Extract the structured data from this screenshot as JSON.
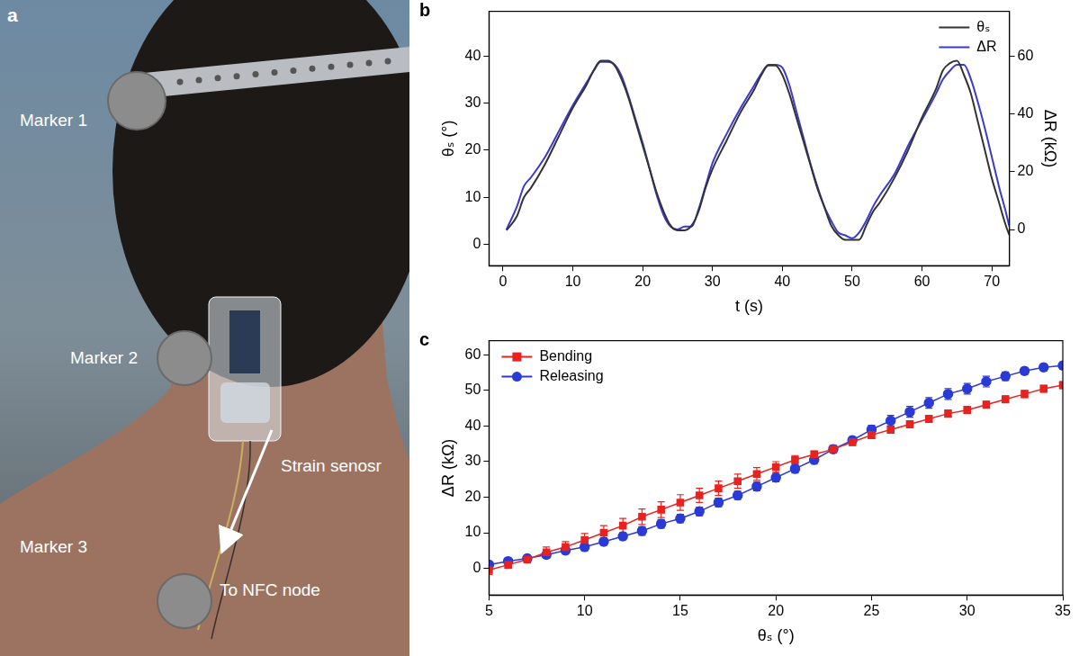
{
  "panel_a": {
    "panel_label": "a",
    "labels": [
      "Marker 1",
      "Marker 2",
      "Strain senosr",
      "Marker 3",
      "To NFC node"
    ]
  },
  "chart_data": [
    {
      "panel_label": "b",
      "type": "line",
      "x_label": "t (s)",
      "y_label": "θₛ (°)",
      "y2_label": "ΔR (kΩ)",
      "x": [
        0.5,
        2,
        3,
        4,
        6,
        8,
        10,
        12,
        13,
        14,
        15,
        16,
        17,
        18,
        19,
        20,
        21,
        22,
        23,
        24,
        25,
        26,
        27,
        28,
        29,
        30,
        32,
        34,
        36,
        37,
        38,
        39,
        40,
        41,
        42,
        43,
        44,
        45,
        46,
        47,
        48,
        49,
        50,
        51,
        52,
        53,
        54,
        56,
        58,
        60,
        62,
        63,
        64,
        65,
        66,
        67,
        68,
        69,
        70,
        71,
        72,
        72.5
      ],
      "xlim": [
        -2,
        72.5
      ],
      "xticks": [
        0,
        10,
        20,
        30,
        40,
        50,
        60,
        70
      ],
      "ylim": [
        -4.5,
        49.5
      ],
      "yticks": [
        0,
        10,
        20,
        30,
        40
      ],
      "y2lim": [
        -12.5,
        75.5
      ],
      "y2ticks": [
        0,
        20,
        40,
        60
      ],
      "grid": false,
      "legend": "upper right",
      "series": [
        {
          "name": "θₛ",
          "color": "#333333",
          "line_style": "solid",
          "values": [
            3,
            6,
            10,
            12,
            17,
            23,
            29,
            34,
            37,
            39,
            39,
            38,
            35,
            31,
            26,
            21,
            16,
            11,
            7,
            4,
            3,
            3,
            4,
            7,
            12,
            16,
            22,
            28,
            33,
            36,
            38,
            38,
            36,
            32,
            27,
            22,
            17,
            12,
            8,
            4,
            2,
            1,
            1,
            1,
            4,
            7,
            9,
            14,
            20,
            27,
            33,
            37,
            38.5,
            39,
            36,
            32,
            26,
            20,
            14,
            9,
            4,
            2
          ]
        },
        {
          "name": "ΔR",
          "color": "#3a3ad0",
          "line_style": "solid",
          "axis": "y2",
          "values": [
            0,
            8,
            15,
            18,
            25,
            34,
            43,
            51,
            55,
            58,
            58,
            57,
            53,
            46,
            38,
            30,
            21,
            12,
            5,
            1,
            0,
            1,
            1,
            7,
            15,
            23,
            33,
            42,
            50,
            54,
            57,
            57,
            56,
            50,
            41,
            32,
            23,
            15,
            8,
            3,
            -1,
            -2,
            -3,
            -1,
            3,
            8,
            12,
            19,
            29,
            38,
            47,
            52,
            55,
            57,
            57,
            52,
            44,
            35,
            25,
            15,
            6,
            1
          ]
        }
      ]
    },
    {
      "panel_label": "c",
      "type": "line",
      "x_label": "θₛ (°)",
      "y_label": "ΔR (kΩ)",
      "x": [
        5,
        6,
        7,
        8,
        9,
        10,
        11,
        12,
        13,
        14,
        15,
        16,
        17,
        18,
        19,
        20,
        21,
        22,
        23,
        24,
        25,
        26,
        27,
        28,
        29,
        30,
        31,
        32,
        33,
        34,
        35
      ],
      "xlim": [
        5,
        35
      ],
      "xticks": [
        5,
        10,
        15,
        20,
        25,
        30,
        35
      ],
      "ylim": [
        -7.5,
        64
      ],
      "yticks": [
        0,
        10,
        20,
        30,
        40,
        50,
        60
      ],
      "grid": false,
      "legend": "upper left",
      "series": [
        {
          "name": "Bending",
          "color": "#e8231f",
          "marker": "square",
          "line_style": "solid",
          "values": [
            -0.5,
            1,
            2.5,
            4.5,
            6,
            8,
            10,
            12,
            14.5,
            16.5,
            18.5,
            20.5,
            22.5,
            24.5,
            26.5,
            28.5,
            30.5,
            32,
            33.5,
            35.5,
            37.5,
            39,
            40.5,
            42,
            43.5,
            44.5,
            46,
            47.5,
            49,
            50.5,
            51.5
          ],
          "error": [
            1.2,
            1,
            1,
            1.5,
            1.5,
            1.8,
            2,
            2,
            2.2,
            2.2,
            2.2,
            2,
            2,
            2,
            1.8,
            1.5,
            1.2,
            1,
            1,
            1,
            1,
            1,
            1,
            1,
            1,
            1,
            1,
            1,
            1,
            1,
            1
          ]
        },
        {
          "name": "Releasing",
          "color": "#2a3ad6",
          "marker": "circle",
          "line_style": "solid",
          "values": [
            1,
            2,
            2.8,
            3.8,
            5,
            6,
            7.5,
            9,
            10.5,
            12.5,
            14,
            16,
            18.5,
            20.5,
            23,
            25.5,
            28,
            30.5,
            33.5,
            36,
            39,
            41.5,
            44,
            46.5,
            49,
            50.5,
            52.5,
            54,
            55.5,
            56.5,
            57
          ],
          "error": [
            0.8,
            0.8,
            0.8,
            1,
            1,
            1,
            1,
            1,
            1.2,
            1.2,
            1.2,
            1.2,
            1.2,
            1.2,
            1.2,
            1.2,
            1.2,
            1.2,
            1,
            1,
            1.2,
            1.5,
            1.5,
            1.5,
            1.5,
            1.5,
            1.5,
            1.2,
            1,
            1,
            1
          ]
        }
      ]
    }
  ]
}
